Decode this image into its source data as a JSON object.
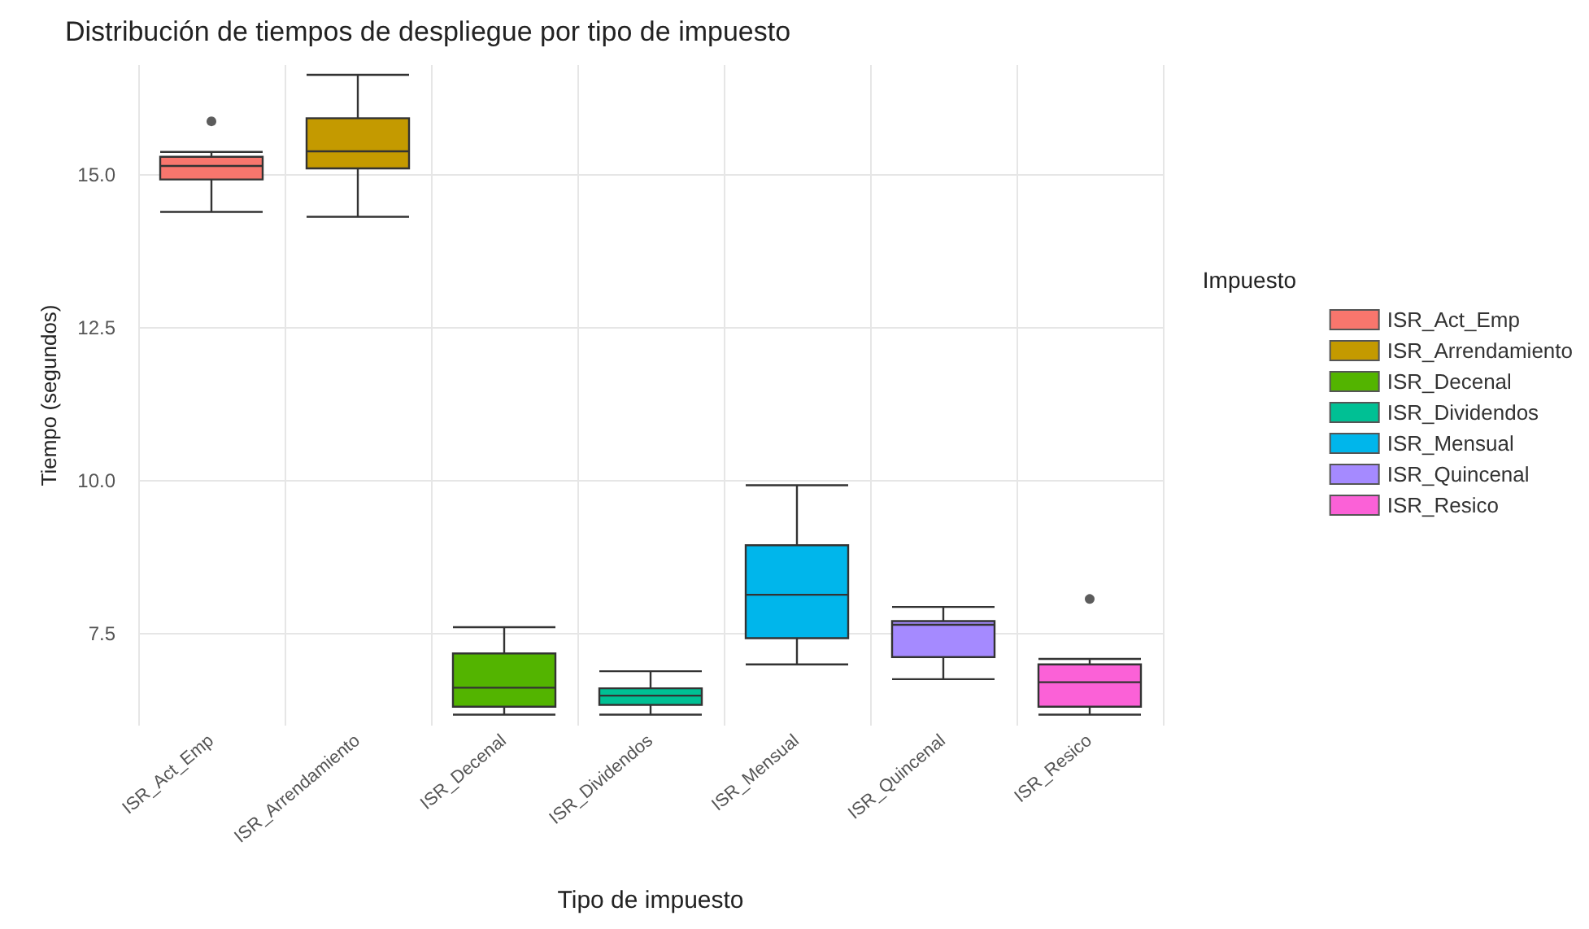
{
  "chart_data": {
    "type": "box",
    "title": "Distribución de tiempos de despliegue por tipo de impuesto",
    "xlabel": "Tipo de impuesto",
    "ylabel": "Tiempo (segundos)",
    "legend_title": "Impuesto",
    "categories": [
      "ISR_Act_Emp",
      "ISR_Arrendamiento",
      "ISR_Decenal",
      "ISR_Dividendos",
      "ISR_Mensual",
      "ISR_Quincenal",
      "ISR_Resico"
    ],
    "series": [
      {
        "name": "ISR_Act_Emp",
        "color": "#f8766d",
        "boxes": [
          {
            "low": 14.4,
            "q1": 14.93,
            "median": 15.15,
            "q3": 15.3,
            "high": 15.38,
            "outliers": [
              15.88
            ]
          },
          null,
          null,
          null,
          null,
          null,
          null
        ]
      },
      {
        "name": "ISR_Arrendamiento",
        "color": "#c49a00",
        "boxes": [
          null,
          {
            "low": 14.32,
            "q1": 15.11,
            "median": 15.39,
            "q3": 15.93,
            "high": 16.64
          },
          null,
          null,
          null,
          null,
          null
        ]
      },
      {
        "name": "ISR_Decenal",
        "color": "#53b400",
        "boxes": [
          null,
          null,
          {
            "low": 6.18,
            "q1": 6.31,
            "median": 6.62,
            "q3": 7.18,
            "high": 7.61
          },
          null,
          null,
          null,
          null
        ]
      },
      {
        "name": "ISR_Dividendos",
        "color": "#00c094",
        "boxes": [
          null,
          null,
          null,
          {
            "low": 6.18,
            "q1": 6.34,
            "median": 6.49,
            "q3": 6.61,
            "high": 6.89
          },
          null,
          null,
          null
        ]
      },
      {
        "name": "ISR_Mensual",
        "color": "#00b6eb",
        "boxes": [
          null,
          null,
          null,
          null,
          {
            "low": 7.0,
            "q1": 7.43,
            "median": 8.14,
            "q3": 8.95,
            "high": 9.93
          },
          null,
          null
        ]
      },
      {
        "name": "ISR_Quincenal",
        "color": "#a58aff",
        "boxes": [
          null,
          null,
          null,
          null,
          null,
          {
            "low": 6.76,
            "q1": 7.12,
            "median": 7.65,
            "q3": 7.71,
            "high": 7.94
          },
          null
        ]
      },
      {
        "name": "ISR_Resico",
        "color": "#fb61d7",
        "boxes": [
          null,
          null,
          null,
          null,
          null,
          null,
          {
            "low": 6.18,
            "q1": 6.31,
            "median": 6.71,
            "q3": 7.0,
            "high": 7.09,
            "outliers": [
              8.07
            ]
          }
        ]
      }
    ],
    "ylim": [
      6.0,
      16.8
    ],
    "yticks": [
      7.5,
      {
        "value": 10,
        "label": "10.0"
      },
      12.5,
      {
        "value": 15,
        "label": "15.0"
      }
    ],
    "grid": true,
    "legend": "right"
  }
}
